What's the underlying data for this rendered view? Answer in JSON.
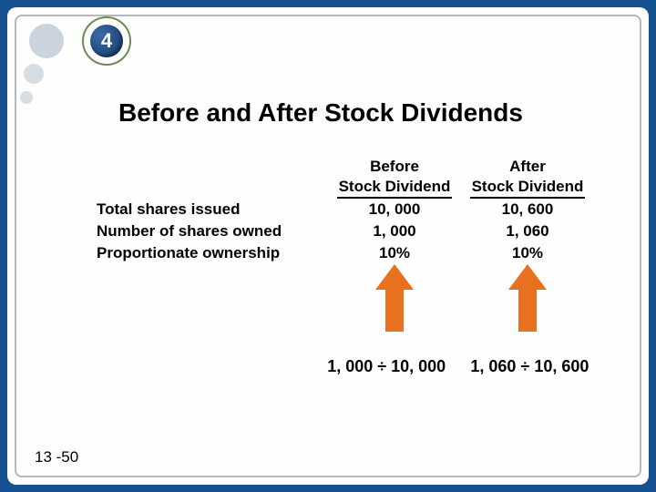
{
  "chapter_badge": "4",
  "title": "Before and After Stock Dividends",
  "headers": {
    "before_top": "Before",
    "before_bottom": "Stock Dividend",
    "after_top": "After",
    "after_bottom": "Stock Dividend"
  },
  "rows": [
    {
      "label": "Total shares issued",
      "before": "10, 000",
      "after": "10, 600"
    },
    {
      "label": "Number of shares owned",
      "before": "1, 000",
      "after": "1, 060"
    },
    {
      "label": "Proportionate ownership",
      "before": "10%",
      "after": "10%"
    }
  ],
  "calculations": {
    "before": "1, 000 ÷ 10, 000",
    "after": "1, 060 ÷ 10, 600"
  },
  "arrow_color": "#e8711f",
  "page_number": "13 -50"
}
